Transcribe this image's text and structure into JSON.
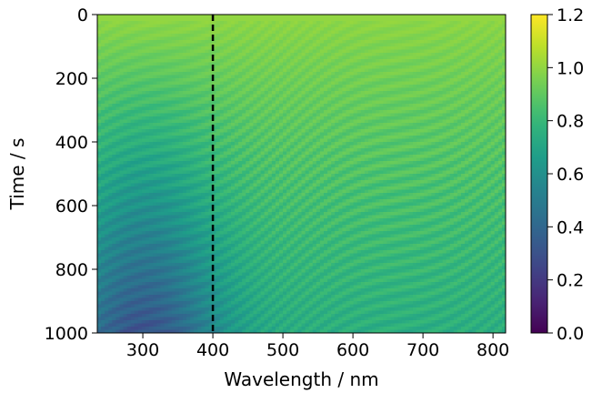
{
  "chart_data": {
    "type": "heatmap",
    "title": "",
    "xlabel": "Wavelength / nm",
    "ylabel": "Time / s",
    "xlim": [
      235,
      818
    ],
    "ylim": [
      0,
      1000
    ],
    "y_inverted": true,
    "x_ticks": [
      "300",
      "400",
      "500",
      "600",
      "700",
      "800"
    ],
    "y_ticks": [
      "0",
      "200",
      "400",
      "600",
      "800",
      "1000"
    ],
    "colorbar": {
      "colormap": "viridis",
      "range": [
        0.0,
        1.2
      ],
      "ticks": [
        "0.0",
        "0.2",
        "0.4",
        "0.6",
        "0.8",
        "1.0",
        "1.2"
      ]
    },
    "reference_line": {
      "axis": "x",
      "value": 400,
      "style": "dashed",
      "color": "#000000"
    },
    "observed": {
      "value_at_t0": 1.0,
      "min_region": {
        "wavelength": 300,
        "time": 950,
        "value": 0.3
      },
      "long_wavelength_late_time_value": 0.75,
      "feature": "diagonal interference fringes whose spacing widens with wavelength"
    },
    "grid": false,
    "legend": "none"
  }
}
